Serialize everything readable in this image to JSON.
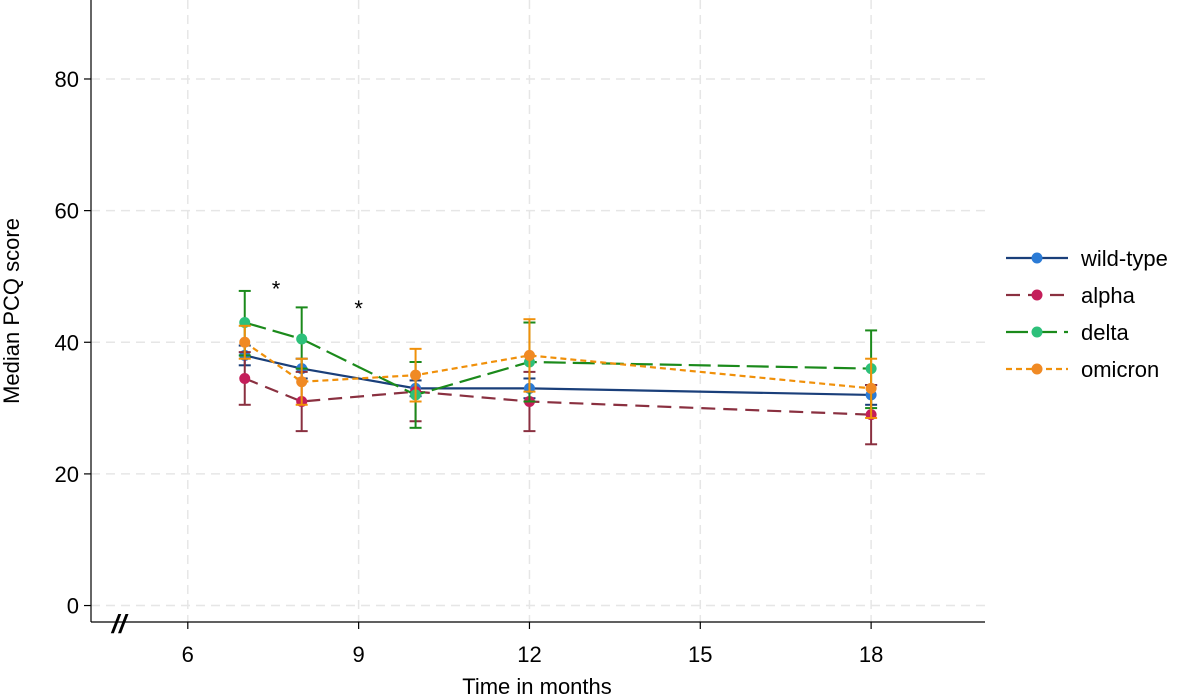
{
  "chart_data": {
    "type": "line",
    "title": "",
    "xlabel": "Time in months",
    "ylabel": "Median PCQ score",
    "xlim": [
      4.3,
      20.0
    ],
    "ylim": [
      -2.5,
      92
    ],
    "xticks": [
      6,
      9,
      12,
      15,
      18
    ],
    "yticks": [
      0,
      20,
      40,
      60,
      80
    ],
    "axis_break_mark": "//",
    "grid": true,
    "legend_position": "right",
    "series": [
      {
        "name": "wild-type",
        "color": "#1a3f7a",
        "marker_color": "#2b7bd6",
        "dash": "solid",
        "x": [
          7,
          8,
          10,
          12,
          18
        ],
        "y": [
          38,
          36,
          33,
          33,
          32
        ],
        "err_low": [
          36.5,
          34.5,
          31.8,
          31.5,
          30.5
        ],
        "err_high": [
          39.5,
          37.5,
          34.2,
          34.5,
          33.5
        ]
      },
      {
        "name": "alpha",
        "color": "#8a3040",
        "marker_color": "#c41e5a",
        "dash": "longdash",
        "x": [
          7,
          8,
          10,
          12,
          18
        ],
        "y": [
          34.5,
          31,
          32.5,
          31,
          29
        ],
        "err_low": [
          30.5,
          26.5,
          28,
          26.5,
          24.5
        ],
        "err_high": [
          38.5,
          35.5,
          37,
          35.5,
          33.5
        ]
      },
      {
        "name": "delta",
        "color": "#1b8a1b",
        "marker_color": "#2dc07a",
        "dash": "dashed",
        "x": [
          7,
          8,
          10,
          12,
          18
        ],
        "y": [
          43,
          40.5,
          32,
          37,
          36
        ],
        "err_low": [
          38,
          36,
          27,
          31,
          30
        ],
        "err_high": [
          47.8,
          45.3,
          37,
          43,
          41.8
        ]
      },
      {
        "name": "omicron",
        "color": "#f0900a",
        "marker_color": "#f08a24",
        "dash": "dotted",
        "x": [
          7,
          8,
          10,
          12,
          18
        ],
        "y": [
          40,
          34,
          35,
          38,
          33
        ],
        "err_low": [
          37.5,
          30.5,
          31,
          32.5,
          28.5
        ],
        "err_high": [
          42.5,
          37.5,
          39,
          43.5,
          37.5
        ]
      }
    ],
    "annotations": [
      {
        "text": "*",
        "x": 7.55,
        "y": 48.5
      },
      {
        "text": "*",
        "x": 9.0,
        "y": 45.5
      }
    ]
  }
}
